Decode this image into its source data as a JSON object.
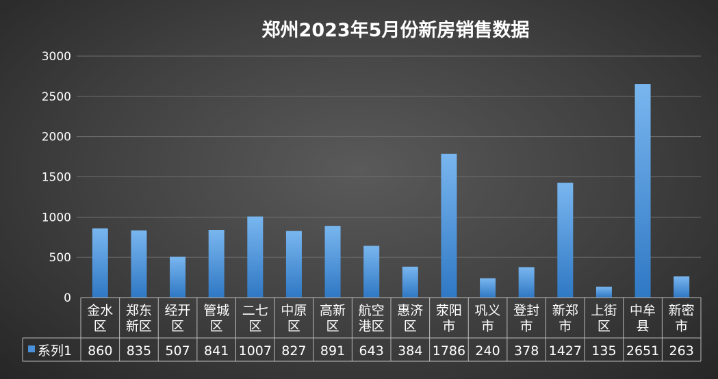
{
  "chart_data": {
    "type": "bar",
    "title": "郑州2023年5月份新房销售数据",
    "categories": [
      [
        "金水",
        "区"
      ],
      [
        "郑东",
        "新区"
      ],
      [
        "经开",
        "区"
      ],
      [
        "管城",
        "区"
      ],
      [
        "二七",
        "区"
      ],
      [
        "中原",
        "区"
      ],
      [
        "高新",
        "区"
      ],
      [
        "航空",
        "港区"
      ],
      [
        "惠济",
        "区"
      ],
      [
        "荥阳",
        "市"
      ],
      [
        "巩义",
        "市"
      ],
      [
        "登封",
        "市"
      ],
      [
        "新郑",
        "市"
      ],
      [
        "上街",
        "区"
      ],
      [
        "中牟",
        "县"
      ],
      [
        "新密",
        "市"
      ]
    ],
    "series": [
      {
        "name": "系列1",
        "values": [
          860,
          835,
          507,
          841,
          1007,
          827,
          891,
          643,
          384,
          1786,
          240,
          378,
          1427,
          135,
          2651,
          263
        ]
      }
    ],
    "yticks": [
      0,
      500,
      1000,
      1500,
      2000,
      2500,
      3000
    ],
    "ylim": [
      0,
      3000
    ],
    "grid": true,
    "legend": "data-table-left",
    "colors": {
      "bar_top": "#79b6ef",
      "bar_bottom": "#2f78c4",
      "legend_key": "#4a90d9"
    }
  }
}
